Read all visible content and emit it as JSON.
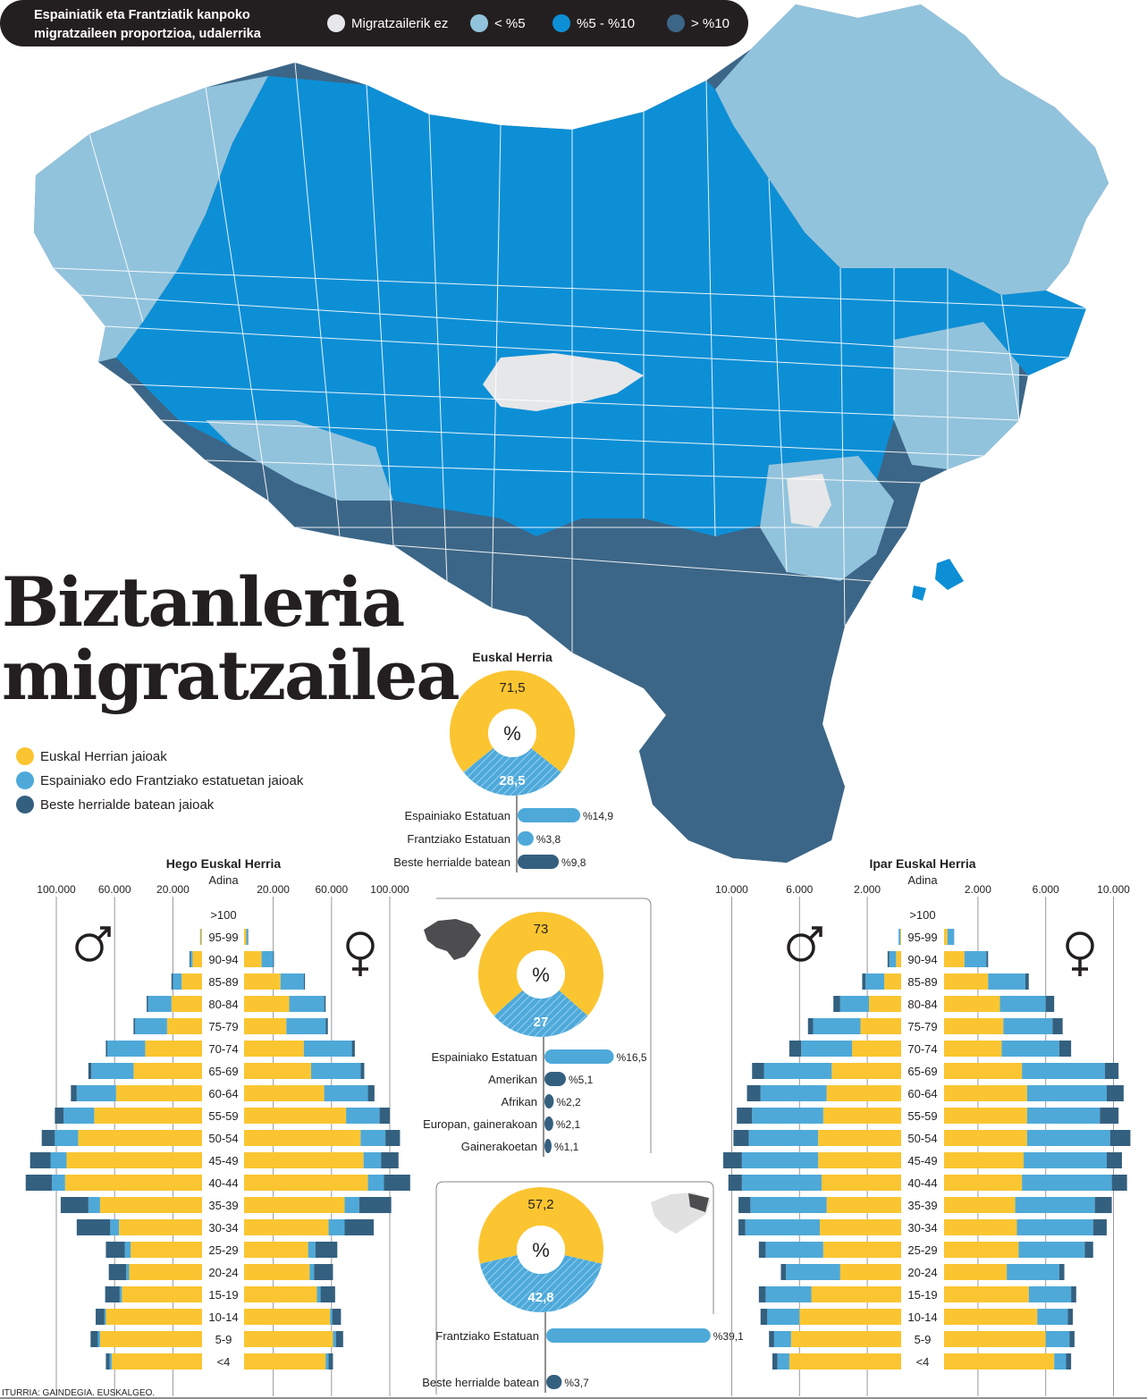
{
  "header": {
    "title_line1": "Espainiatik eta Frantziatik kanpoko",
    "title_line2": "migratzaileen proportzioa, udalerrika",
    "map_legend": [
      {
        "label": "Migratzailerik ez",
        "color": "#e6e7e8"
      },
      {
        "label": "< %5",
        "color": "#92c3dc"
      },
      {
        "label": "%5 - %10",
        "color": "#0d8fd6"
      },
      {
        "label": "> %10",
        "color": "#3c6687"
      }
    ]
  },
  "headline": {
    "line1": "Biztanleria",
    "line2": "migratzailea"
  },
  "legend": [
    {
      "label": "Euskal Herrian jaioak",
      "color": "#fbc531"
    },
    {
      "label": "Espainiako edo Frantziako estatuetan jaioak",
      "color": "#4ea9d9"
    },
    {
      "label": "Beste herrialde batean jaioak",
      "color": "#34607f"
    }
  ],
  "colors": {
    "born_local": "#fbc531",
    "born_state": "#4ea9d9",
    "born_abroad": "#34607f",
    "no_migrants": "#e6e7e8",
    "under5": "#92c3dc",
    "five_ten": "#0d8fd6",
    "over10": "#3c6687"
  },
  "source": "ITURRIA: GAINDEGIA. EUSKALGEO.",
  "chart_data": [
    {
      "type": "pie",
      "title": "Euskal Herria",
      "center_label": "%",
      "slices": [
        {
          "label": "71,5",
          "value": 71.5
        },
        {
          "label": "28,5",
          "value": 28.5
        }
      ],
      "breakdown": [
        {
          "label": "Espainiako Estatuan",
          "value": 14.9,
          "value_label": "%14,9"
        },
        {
          "label": "Frantziako Estatuan",
          "value": 3.8,
          "value_label": "%3,8"
        },
        {
          "label": "Beste herrialde batean",
          "value": 9.8,
          "value_label": "%9,8"
        }
      ]
    },
    {
      "type": "pie",
      "title": "",
      "center_label": "%",
      "slices": [
        {
          "label": "73",
          "value": 73
        },
        {
          "label": "27",
          "value": 27
        }
      ],
      "breakdown": [
        {
          "label": "Espainiako Estatuan",
          "value": 16.5,
          "value_label": "%16,5"
        },
        {
          "label": "Amerikan",
          "value": 5.1,
          "value_label": "%5,1"
        },
        {
          "label": "Afrikan",
          "value": 2.2,
          "value_label": "%2,2"
        },
        {
          "label": "Europan, gainerakoan",
          "value": 2.1,
          "value_label": "%2,1"
        },
        {
          "label": "Gainerakoetan",
          "value": 1.1,
          "value_label": "%1,1"
        }
      ]
    },
    {
      "type": "pie",
      "title": "",
      "center_label": "%",
      "slices": [
        {
          "label": "57,2",
          "value": 57.2
        },
        {
          "label": "42,8",
          "value": 42.8
        }
      ],
      "breakdown": [
        {
          "label": "Frantziako Estatuan",
          "value": 39.1,
          "value_label": "%39,1"
        },
        {
          "label": "Beste herrialde batean",
          "value": 3.7,
          "value_label": "%3,7"
        }
      ]
    },
    {
      "type": "bar",
      "title": "Hego Euskal Herria",
      "ylabel": "Adina",
      "xlim": [
        0,
        120000
      ],
      "tick_labels": [
        "100.000",
        "60.000",
        "20.000",
        "20.000",
        "60.000",
        "100.000"
      ],
      "ticks": [
        -100000,
        -60000,
        -20000,
        20000,
        60000,
        100000
      ],
      "categories": [
        ">100",
        "95-99",
        "90-94",
        "85-89",
        "80-84",
        "75-79",
        "70-74",
        "65-69",
        "60-64",
        "55-59",
        "50-54",
        "45-49",
        "40-44",
        "35-39",
        "30-34",
        "25-29",
        "20-24",
        "15-19",
        "10-14",
        "5-9",
        "<4"
      ],
      "male": {
        "local": [
          0,
          800,
          6500,
          14000,
          21000,
          24000,
          39000,
          47000,
          59000,
          74000,
          85000,
          93000,
          94000,
          70000,
          57000,
          49000,
          50000,
          55000,
          66000,
          70000,
          62000
        ],
        "state": [
          0,
          300,
          1500,
          6000,
          16000,
          22000,
          26000,
          29000,
          27000,
          21000,
          16000,
          11000,
          9000,
          8000,
          6000,
          4000,
          2000,
          1500,
          1000,
          1500,
          1500
        ],
        "abroad": [
          0,
          200,
          600,
          1000,
          1000,
          1000,
          1000,
          2000,
          4000,
          6000,
          9000,
          14000,
          18000,
          19000,
          23000,
          13000,
          12000,
          10000,
          6000,
          5000,
          2500
        ]
      },
      "female": {
        "local": [
          0,
          1500,
          12000,
          25000,
          31000,
          29000,
          41000,
          46000,
          55000,
          70000,
          80000,
          82000,
          85000,
          69000,
          58000,
          44000,
          45000,
          50000,
          59000,
          61000,
          56000
        ],
        "state": [
          0,
          1200,
          8000,
          16000,
          24000,
          27000,
          33000,
          34000,
          30000,
          23000,
          17000,
          12000,
          11000,
          10000,
          11000,
          5000,
          3000,
          2500,
          1500,
          2000,
          2000
        ],
        "abroad": [
          0,
          200,
          500,
          800,
          1000,
          1500,
          2000,
          2500,
          4500,
          7000,
          10000,
          12000,
          18000,
          22000,
          20000,
          15000,
          13000,
          10000,
          6000,
          5000,
          3000
        ]
      }
    },
    {
      "type": "bar",
      "title": "Ipar Euskal Herria",
      "ylabel": "Adina",
      "xlim": [
        0,
        11000
      ],
      "tick_labels": [
        "10.000",
        "6.000",
        "2.000",
        "2.000",
        "6.000",
        "10.000"
      ],
      "ticks": [
        -10000,
        -6000,
        -2000,
        2000,
        6000,
        10000
      ],
      "categories": [
        ">100",
        "95-99",
        "90-94",
        "85-89",
        "80-84",
        "75-79",
        "70-74",
        "65-69",
        "60-64",
        "55-59",
        "50-54",
        "45-49",
        "40-44",
        "35-39",
        "30-34",
        "25-29",
        "20-24",
        "15-19",
        "10-14",
        "5-9",
        "<4"
      ],
      "male": {
        "local": [
          0,
          50,
          300,
          1000,
          1900,
          2400,
          2900,
          4100,
          4400,
          4600,
          4900,
          4900,
          4700,
          4400,
          4800,
          4600,
          3600,
          5300,
          6000,
          6500,
          6600
        ],
        "state": [
          0,
          100,
          400,
          1100,
          1700,
          2800,
          3000,
          4000,
          3900,
          4200,
          4100,
          4500,
          4700,
          4500,
          4400,
          3400,
          3200,
          2700,
          1900,
          1000,
          700
        ],
        "abroad": [
          0,
          0,
          100,
          200,
          400,
          300,
          700,
          700,
          800,
          900,
          900,
          1100,
          800,
          700,
          400,
          400,
          300,
          400,
          400,
          300,
          300
        ]
      },
      "female": {
        "local": [
          0,
          200,
          1200,
          2600,
          3300,
          3500,
          3400,
          4600,
          4900,
          4900,
          4900,
          4700,
          4600,
          4200,
          4300,
          4400,
          3700,
          5000,
          5500,
          6000,
          6500
        ],
        "state": [
          0,
          400,
          1300,
          2200,
          2700,
          2900,
          3400,
          4900,
          4700,
          4300,
          4900,
          4900,
          5300,
          4700,
          4500,
          3900,
          3100,
          2500,
          1800,
          1400,
          700
        ],
        "abroad": [
          0,
          0,
          100,
          200,
          500,
          600,
          700,
          800,
          1000,
          1100,
          1200,
          900,
          900,
          1000,
          800,
          500,
          300,
          300,
          300,
          300,
          300
        ]
      }
    }
  ]
}
